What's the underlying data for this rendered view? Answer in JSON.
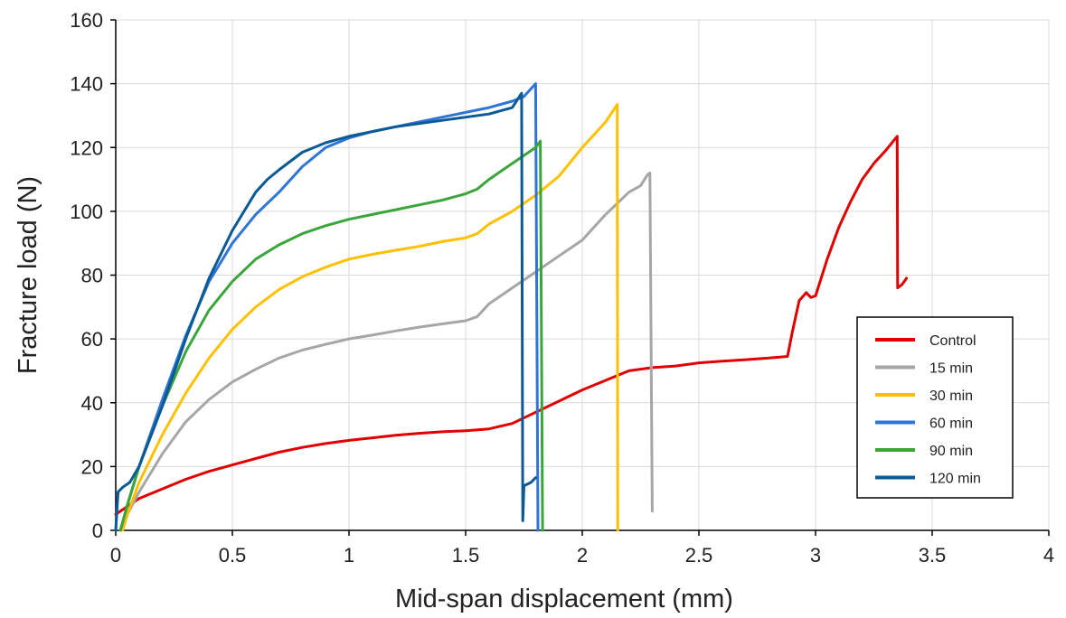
{
  "chart_data": {
    "type": "line",
    "xlabel": "Mid-span displacement (mm)",
    "ylabel": "Fracture load (N)",
    "xlim": [
      0,
      4
    ],
    "ylim": [
      0,
      160
    ],
    "xticks": [
      "0",
      "0.5",
      "1",
      "1.5",
      "2",
      "2.5",
      "3",
      "3.5",
      "4"
    ],
    "yticks": [
      "0",
      "20",
      "40",
      "60",
      "80",
      "100",
      "120",
      "140",
      "160"
    ],
    "grid": true,
    "legend_position": "right",
    "series": [
      {
        "name": "Control",
        "color": "#e00000",
        "points": [
          [
            0,
            5
          ],
          [
            0.02,
            6
          ],
          [
            0.1,
            10
          ],
          [
            0.2,
            13
          ],
          [
            0.3,
            16
          ],
          [
            0.4,
            18.5
          ],
          [
            0.5,
            20.5
          ],
          [
            0.6,
            22.5
          ],
          [
            0.7,
            24.5
          ],
          [
            0.8,
            26
          ],
          [
            0.9,
            27.2
          ],
          [
            1.0,
            28.2
          ],
          [
            1.1,
            29
          ],
          [
            1.2,
            29.8
          ],
          [
            1.3,
            30.4
          ],
          [
            1.4,
            30.9
          ],
          [
            1.5,
            31.2
          ],
          [
            1.6,
            31.8
          ],
          [
            1.7,
            33.5
          ],
          [
            1.8,
            37
          ],
          [
            1.9,
            40.5
          ],
          [
            2.0,
            44
          ],
          [
            2.1,
            47
          ],
          [
            2.2,
            50
          ],
          [
            2.3,
            51
          ],
          [
            2.4,
            51.5
          ],
          [
            2.5,
            52.5
          ],
          [
            2.6,
            53
          ],
          [
            2.7,
            53.5
          ],
          [
            2.8,
            54
          ],
          [
            2.88,
            54.5
          ],
          [
            2.9,
            62
          ],
          [
            2.93,
            72
          ],
          [
            2.96,
            74.5
          ],
          [
            2.98,
            73
          ],
          [
            3.0,
            73.5
          ],
          [
            3.05,
            85
          ],
          [
            3.1,
            95
          ],
          [
            3.15,
            103
          ],
          [
            3.2,
            110
          ],
          [
            3.25,
            115
          ],
          [
            3.3,
            119
          ],
          [
            3.35,
            123.5
          ],
          [
            3.352,
            76
          ],
          [
            3.37,
            77
          ],
          [
            3.39,
            79
          ]
        ]
      },
      {
        "name": "15 min",
        "color": "#a6a6a6",
        "points": [
          [
            0.03,
            0
          ],
          [
            0.05,
            5
          ],
          [
            0.1,
            12
          ],
          [
            0.2,
            24
          ],
          [
            0.3,
            34
          ],
          [
            0.4,
            41
          ],
          [
            0.5,
            46.5
          ],
          [
            0.6,
            50.5
          ],
          [
            0.7,
            54
          ],
          [
            0.8,
            56.5
          ],
          [
            0.9,
            58.3
          ],
          [
            1.0,
            60
          ],
          [
            1.1,
            61.2
          ],
          [
            1.2,
            62.5
          ],
          [
            1.3,
            63.7
          ],
          [
            1.4,
            64.7
          ],
          [
            1.5,
            65.7
          ],
          [
            1.55,
            67
          ],
          [
            1.6,
            71
          ],
          [
            1.7,
            76
          ],
          [
            1.8,
            81
          ],
          [
            1.9,
            86
          ],
          [
            2.0,
            91
          ],
          [
            2.1,
            99
          ],
          [
            2.2,
            106
          ],
          [
            2.25,
            108
          ],
          [
            2.28,
            111.5
          ],
          [
            2.29,
            112
          ],
          [
            2.3,
            6
          ]
        ]
      },
      {
        "name": "30 min",
        "color": "#ffc000",
        "points": [
          [
            0.03,
            0
          ],
          [
            0.05,
            5
          ],
          [
            0.1,
            15
          ],
          [
            0.2,
            30
          ],
          [
            0.3,
            43
          ],
          [
            0.4,
            54
          ],
          [
            0.5,
            63
          ],
          [
            0.6,
            70
          ],
          [
            0.7,
            75.5
          ],
          [
            0.8,
            79.5
          ],
          [
            0.9,
            82.5
          ],
          [
            1.0,
            85
          ],
          [
            1.1,
            86.5
          ],
          [
            1.2,
            87.8
          ],
          [
            1.3,
            89
          ],
          [
            1.4,
            90.5
          ],
          [
            1.5,
            91.7
          ],
          [
            1.55,
            93
          ],
          [
            1.6,
            96
          ],
          [
            1.7,
            100
          ],
          [
            1.8,
            105
          ],
          [
            1.9,
            111
          ],
          [
            2.0,
            120
          ],
          [
            2.1,
            128
          ],
          [
            2.15,
            133.5
          ],
          [
            2.152,
            0
          ]
        ]
      },
      {
        "name": "60 min",
        "color": "#2e75d6",
        "points": [
          [
            0.02,
            0
          ],
          [
            0.05,
            8
          ],
          [
            0.1,
            20
          ],
          [
            0.2,
            41
          ],
          [
            0.3,
            61
          ],
          [
            0.4,
            78
          ],
          [
            0.5,
            90
          ],
          [
            0.6,
            99
          ],
          [
            0.7,
            106
          ],
          [
            0.8,
            114
          ],
          [
            0.9,
            120
          ],
          [
            1.0,
            123
          ],
          [
            1.1,
            125
          ],
          [
            1.2,
            126.5
          ],
          [
            1.3,
            128
          ],
          [
            1.4,
            129.5
          ],
          [
            1.5,
            131
          ],
          [
            1.6,
            132.5
          ],
          [
            1.7,
            134.5
          ],
          [
            1.75,
            136
          ],
          [
            1.8,
            140
          ],
          [
            1.81,
            0
          ]
        ]
      },
      {
        "name": "90 min",
        "color": "#3aa63a",
        "points": [
          [
            0.02,
            0
          ],
          [
            0.05,
            8
          ],
          [
            0.1,
            20
          ],
          [
            0.2,
            39
          ],
          [
            0.3,
            56
          ],
          [
            0.4,
            69
          ],
          [
            0.5,
            78
          ],
          [
            0.6,
            85
          ],
          [
            0.7,
            89.5
          ],
          [
            0.8,
            93
          ],
          [
            0.9,
            95.5
          ],
          [
            1.0,
            97.5
          ],
          [
            1.1,
            99
          ],
          [
            1.2,
            100.5
          ],
          [
            1.3,
            102
          ],
          [
            1.4,
            103.5
          ],
          [
            1.5,
            105.5
          ],
          [
            1.55,
            107
          ],
          [
            1.6,
            110
          ],
          [
            1.7,
            115
          ],
          [
            1.8,
            120
          ],
          [
            1.82,
            122
          ],
          [
            1.83,
            0
          ]
        ]
      },
      {
        "name": "120 min",
        "color": "#0b5a96",
        "points": [
          [
            0,
            0
          ],
          [
            0.01,
            12
          ],
          [
            0.03,
            13.5
          ],
          [
            0.06,
            15
          ],
          [
            0.1,
            20
          ],
          [
            0.2,
            39
          ],
          [
            0.3,
            60
          ],
          [
            0.4,
            79
          ],
          [
            0.5,
            94
          ],
          [
            0.6,
            106
          ],
          [
            0.65,
            110
          ],
          [
            0.7,
            113
          ],
          [
            0.8,
            118.5
          ],
          [
            0.9,
            121.5
          ],
          [
            1.0,
            123.5
          ],
          [
            1.1,
            125
          ],
          [
            1.2,
            126.5
          ],
          [
            1.3,
            127.5
          ],
          [
            1.4,
            128.5
          ],
          [
            1.5,
            129.5
          ],
          [
            1.6,
            130.5
          ],
          [
            1.7,
            132.5
          ],
          [
            1.74,
            137
          ],
          [
            1.745,
            3
          ],
          [
            1.75,
            14
          ],
          [
            1.78,
            15
          ],
          [
            1.8,
            16.5
          ]
        ]
      }
    ]
  }
}
